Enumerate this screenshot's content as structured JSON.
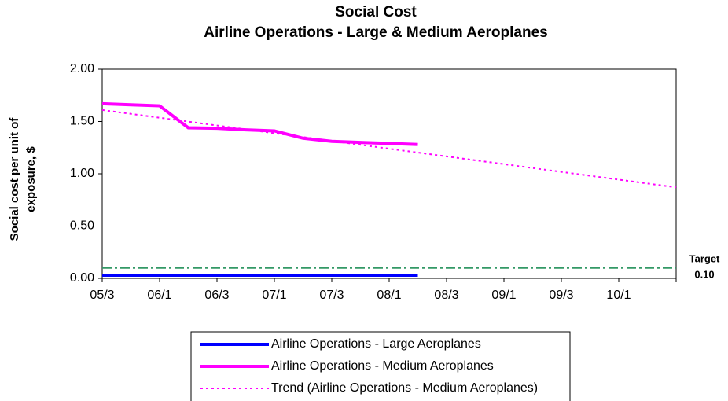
{
  "chart_data": {
    "type": "line",
    "title": "Social Cost",
    "subtitle": "Airline Operations - Large & Medium Aeroplanes",
    "y_label": [
      "Social cost per unit of",
      "exposure, $"
    ],
    "categories": [
      "05/3",
      null,
      "06/1",
      null,
      "06/3",
      null,
      "07/1",
      null,
      "07/3",
      null,
      "08/1",
      null,
      "08/3",
      null,
      "09/1",
      null,
      "09/3",
      null,
      "10/1",
      null,
      null
    ],
    "ylim": [
      0,
      2
    ],
    "yticks": [
      {
        "value": 0,
        "label": "0.00"
      },
      {
        "value": 0.5,
        "label": "0.50"
      },
      {
        "value": 1,
        "label": "1.00"
      },
      {
        "value": 1.5,
        "label": "1.50"
      },
      {
        "value": 2,
        "label": "2.00"
      }
    ],
    "series": [
      {
        "name": "Airline Operations - Large Aeroplanes",
        "color": "#0000ff",
        "dash": "solid",
        "values": [
          0.03,
          0.03,
          0.03,
          0.03,
          0.03,
          0.03,
          0.03,
          0.03,
          0.03,
          0.03,
          0.03,
          0.03,
          null,
          null,
          null,
          null,
          null,
          null,
          null,
          null,
          null
        ]
      },
      {
        "name": "Airline Operations - Medium Aeroplanes",
        "color": "#ff00ff",
        "dash": "solid",
        "values": [
          1.67,
          1.66,
          1.65,
          1.44,
          1.435,
          1.42,
          1.41,
          1.34,
          1.31,
          1.3,
          1.29,
          1.28,
          null,
          null,
          null,
          null,
          null,
          null,
          null,
          null,
          null
        ]
      },
      {
        "name": "Trend (Airline Operations - Medium Aeroplanes)",
        "color": "#ff00ff",
        "dash": "dotted",
        "values": [
          1.61,
          1.573,
          1.536,
          1.499,
          1.462,
          1.425,
          1.388,
          1.351,
          1.314,
          1.277,
          1.24,
          1.203,
          1.166,
          1.129,
          1.092,
          1.055,
          1.018,
          0.981,
          0.944,
          0.907,
          0.87
        ]
      }
    ],
    "target": {
      "label": "Target",
      "value": 0.1,
      "value_label": "0.10",
      "color": "#339966"
    }
  }
}
